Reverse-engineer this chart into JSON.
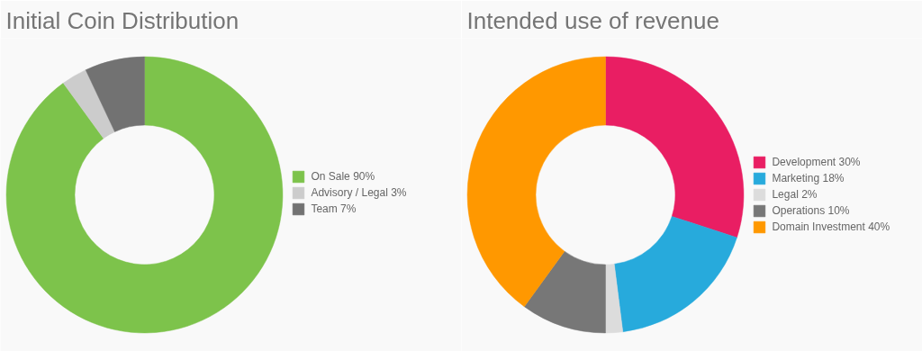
{
  "chart_data": [
    {
      "type": "donut",
      "title": "Initial Coin Distribution",
      "categories": [
        "On Sale 90%",
        "Advisory / Legal 3%",
        "Team 7%"
      ],
      "values": [
        90,
        3,
        7
      ],
      "colors": [
        "#7dc34b",
        "#cccccc",
        "#727272"
      ],
      "legend": "right"
    },
    {
      "type": "donut",
      "title": "Intended use of revenue",
      "categories": [
        "Development 30%",
        "Marketing 18%",
        "Legal 2%",
        "Operations 10%",
        "Domain Investment 40%"
      ],
      "values": [
        30,
        18,
        2,
        10,
        40
      ],
      "colors": [
        "#e91e63",
        "#27aadc",
        "#dcdcdc",
        "#777777",
        "#ff9800"
      ],
      "legend": "right"
    }
  ]
}
